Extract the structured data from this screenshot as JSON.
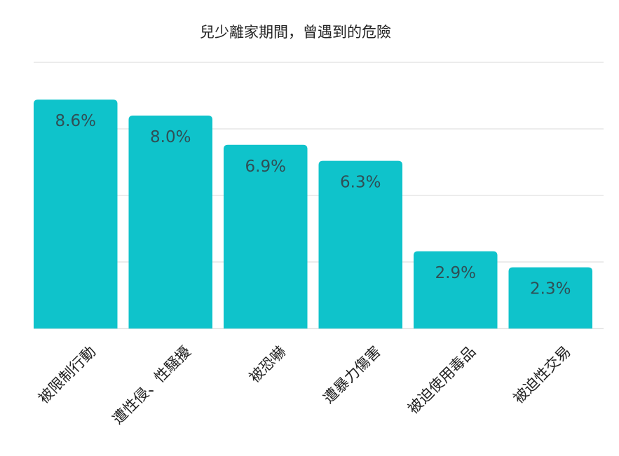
{
  "chart_data": {
    "type": "bar",
    "title": "兒少離家期間，曾遇到的危險",
    "categories": [
      "被限制行動",
      "遭性侵、性騷擾",
      "被恐嚇",
      "遭暴力傷害",
      "被迫使用毒品",
      "被迫性交易"
    ],
    "values": [
      8.6,
      8.0,
      6.9,
      6.3,
      2.9,
      2.3
    ],
    "data_labels": [
      "8.6%",
      "8.0%",
      "6.9%",
      "6.3%",
      "2.9%",
      "2.3%"
    ],
    "ylim": [
      0,
      10
    ],
    "grid": true,
    "legend": "none",
    "colors": {
      "bar": "#0fc3cb",
      "grid": "#d9d9d9",
      "label": "#2f4f55",
      "text": "#222222"
    }
  }
}
